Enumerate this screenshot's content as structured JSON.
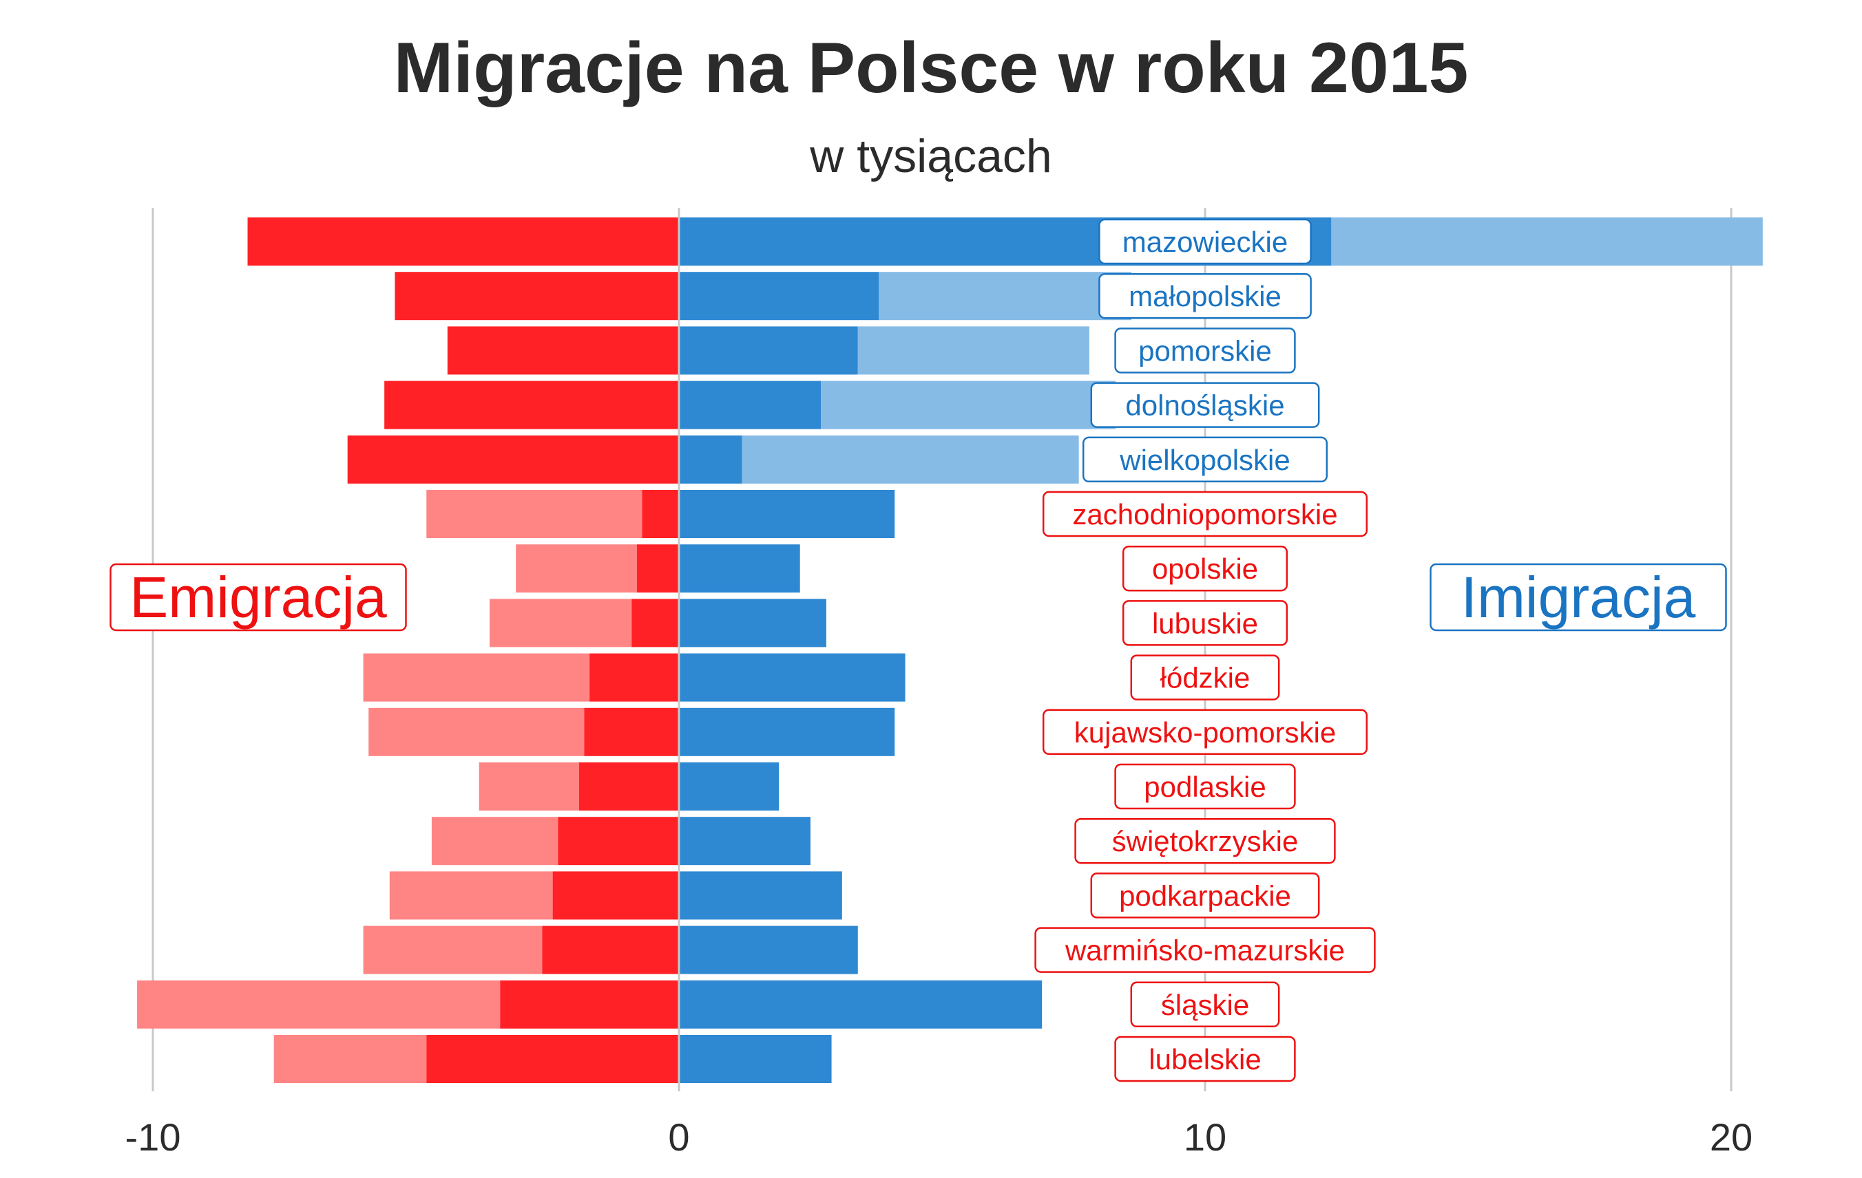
{
  "chart_data": {
    "type": "bar",
    "title": "Migracje na Polsce w roku 2015",
    "subtitle": "w tysiącach",
    "xlim": [
      -10,
      20
    ],
    "x_ticks": [
      "-10",
      "0",
      "10",
      "20"
    ],
    "x_tick_values": [
      -10,
      0,
      10,
      20
    ],
    "grid": "vertical",
    "legend_labels": {
      "emigration": "Emigracja",
      "immigration": "Imigracja"
    },
    "colors": {
      "emigration_dark": "#ff2126",
      "emigration_light": "#ff8585",
      "immigration_dark": "#2e88d2",
      "immigration_light": "#86bbe6",
      "label_red": "#ee1111",
      "label_blue": "#1a74c2",
      "grid": "#c8c8c8",
      "text": "#2b2b2b"
    },
    "categories": [
      "mazowieckie",
      "małopolskie",
      "pomorskie",
      "dolnośląskie",
      "wielkopolskie",
      "zachodniopomorskie",
      "opolskie",
      "lubuskie",
      "łódzkie",
      "kujawsko-pomorskie",
      "podlaskie",
      "świętokrzyskie",
      "podkarpackie",
      "warmińsko-mazurskie",
      "śląskie",
      "lubelskie"
    ],
    "label_group": [
      "blue",
      "blue",
      "blue",
      "blue",
      "blue",
      "red",
      "red",
      "red",
      "red",
      "red",
      "red",
      "red",
      "red",
      "red",
      "red",
      "red"
    ],
    "series": [
      {
        "name": "Emigracja",
        "values": [
          -8.2,
          -5.4,
          -4.4,
          -5.6,
          -6.3,
          -0.7,
          -0.8,
          -0.9,
          -1.7,
          -1.8,
          -1.9,
          -2.3,
          -2.4,
          -2.6,
          -3.4,
          -4.8
        ]
      },
      {
        "name": "Emigracja",
        "values": [
          -8.2,
          -5.4,
          -4.4,
          -5.6,
          -6.3,
          -4.8,
          -3.1,
          -3.6,
          -6.0,
          -5.9,
          -3.8,
          -4.7,
          -5.5,
          -6.0,
          -10.3,
          -7.7
        ]
      },
      {
        "name": "Imigracja",
        "values": [
          12.4,
          3.8,
          3.4,
          2.7,
          1.2,
          4.1,
          2.3,
          2.8,
          4.3,
          4.1,
          1.9,
          2.5,
          3.1,
          3.4,
          6.9,
          2.9
        ]
      },
      {
        "name": "Imigracja",
        "values": [
          20.6,
          8.6,
          7.8,
          8.3,
          7.6,
          4.1,
          2.3,
          2.8,
          4.3,
          4.1,
          1.9,
          2.5,
          3.1,
          3.4,
          6.9,
          2.9
        ]
      }
    ]
  }
}
